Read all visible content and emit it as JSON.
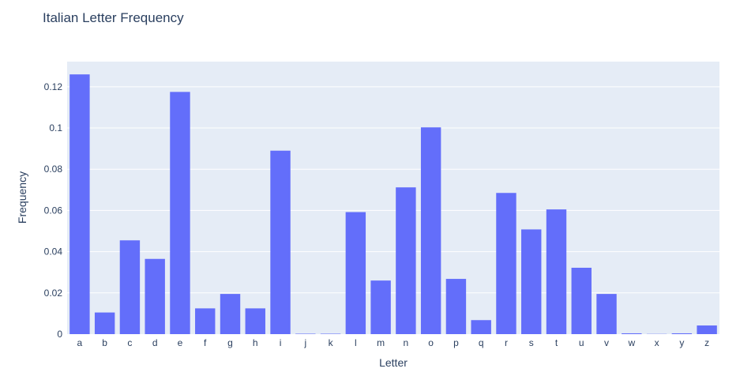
{
  "chart_data": {
    "type": "bar",
    "title": "Italian Letter Frequency",
    "xlabel": "Letter",
    "ylabel": "Frequency",
    "categories": [
      "a",
      "b",
      "c",
      "d",
      "e",
      "f",
      "g",
      "h",
      "i",
      "j",
      "k",
      "l",
      "m",
      "n",
      "o",
      "p",
      "q",
      "r",
      "s",
      "t",
      "u",
      "v",
      "w",
      "x",
      "y",
      "z"
    ],
    "values": [
      0.126,
      0.0105,
      0.0455,
      0.0365,
      0.1175,
      0.0125,
      0.0195,
      0.0125,
      0.089,
      0.0002,
      0.0002,
      0.0592,
      0.026,
      0.0712,
      0.1003,
      0.0268,
      0.0068,
      0.0685,
      0.0508,
      0.0605,
      0.0322,
      0.0195,
      0.0004,
      0.0001,
      0.0004,
      0.0042
    ],
    "ylim": [
      0,
      0.1322
    ],
    "yticks": [
      0,
      0.02,
      0.04,
      0.06,
      0.08,
      0.1,
      0.12
    ],
    "ytick_labels": [
      "0",
      "0.02",
      "0.04",
      "0.06",
      "0.08",
      "0.1",
      "0.12"
    ],
    "grid": true,
    "colors": {
      "bar": "#636efa",
      "plot_bg": "#e5ecf6",
      "grid": "#ffffff",
      "text": "#2a3f5f"
    }
  }
}
